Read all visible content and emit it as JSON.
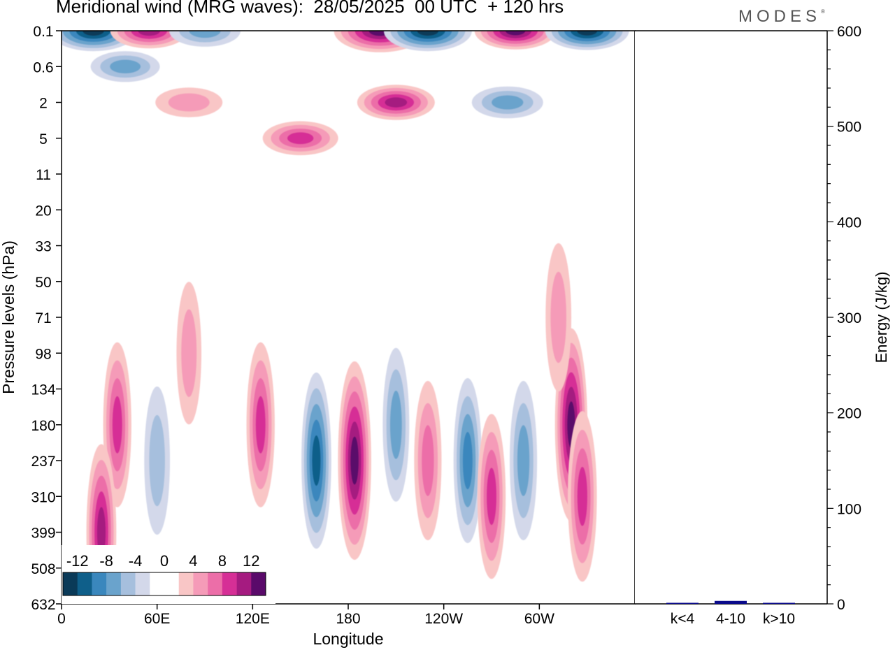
{
  "brand": {
    "name": "MODES",
    "mark": "®"
  },
  "chart_data": [
    {
      "type": "heatmap",
      "title": "Meridional wind (MRG waves):  28/05/2025  00 UTC  + 120 hrs",
      "xlabel": "Longitude",
      "ylabel": "Pressure levels (hPa)",
      "x_ticks": [
        "0",
        "60E",
        "120E",
        "180",
        "120W",
        "60W"
      ],
      "y_levels": [
        "0.1",
        "0.6",
        "2",
        "5",
        "11",
        "20",
        "33",
        "50",
        "71",
        "98",
        "134",
        "180",
        "237",
        "310",
        "399",
        "508",
        "632"
      ],
      "colorbar": {
        "labels": [
          "-12",
          "-8",
          "-4",
          "0",
          "4",
          "8",
          "12"
        ],
        "colors": [
          "#0a3a58",
          "#0f5f8a",
          "#3a87bd",
          "#6aa3cc",
          "#a6bfdd",
          "#d3d8ea",
          "#ffffff",
          "#ffffff",
          "#f9c6c6",
          "#f59bb8",
          "#ec6ea8",
          "#d62f96",
          "#a51b80",
          "#5a0a6a"
        ]
      },
      "features": [
        {
          "lon": 20,
          "level": "0.1",
          "value": -14
        },
        {
          "lon": 55,
          "level": "0.1",
          "value": 9
        },
        {
          "lon": 90,
          "level": "0.1",
          "value": -6
        },
        {
          "lon": 200,
          "level": "0.1",
          "value": 16
        },
        {
          "lon": 230,
          "level": "0.1",
          "value": -14
        },
        {
          "lon": 285,
          "level": "0.1",
          "value": 11
        },
        {
          "lon": 330,
          "level": "0.1",
          "value": -12
        },
        {
          "lon": 40,
          "level": "0.6",
          "value": -5
        },
        {
          "lon": 80,
          "level": "2",
          "value": 4
        },
        {
          "lon": 210,
          "level": "2",
          "value": 9
        },
        {
          "lon": 150,
          "level": "5",
          "value": 8
        },
        {
          "lon": 280,
          "level": "2",
          "value": -6
        },
        {
          "lon": 35,
          "level": "180",
          "value": 7
        },
        {
          "lon": 25,
          "level": "399",
          "value": 9
        },
        {
          "lon": 60,
          "level": "237",
          "value": -4
        },
        {
          "lon": 80,
          "level": "98",
          "value": 3
        },
        {
          "lon": 125,
          "level": "180",
          "value": 7
        },
        {
          "lon": 160,
          "level": "237",
          "value": -9
        },
        {
          "lon": 184,
          "level": "237",
          "value": 13
        },
        {
          "lon": 210,
          "level": "180",
          "value": -5
        },
        {
          "lon": 230,
          "level": "237",
          "value": 6
        },
        {
          "lon": 255,
          "level": "237",
          "value": -7
        },
        {
          "lon": 270,
          "level": "310",
          "value": 7
        },
        {
          "lon": 290,
          "level": "237",
          "value": -6
        },
        {
          "lon": 320,
          "level": "180",
          "value": 12
        },
        {
          "lon": 327,
          "level": "310",
          "value": 8
        },
        {
          "lon": 312,
          "level": "71",
          "value": 4
        }
      ]
    },
    {
      "type": "bar",
      "ylabel": "Energy (J/kg)",
      "categories": [
        "k<4",
        "4-10",
        "k>10"
      ],
      "values": [
        0,
        2,
        0
      ],
      "ylim": [
        0,
        600
      ],
      "y_ticks": [
        "0",
        "100",
        "200",
        "300",
        "400",
        "500",
        "600"
      ],
      "bar_color": "#0a0a8a"
    }
  ]
}
